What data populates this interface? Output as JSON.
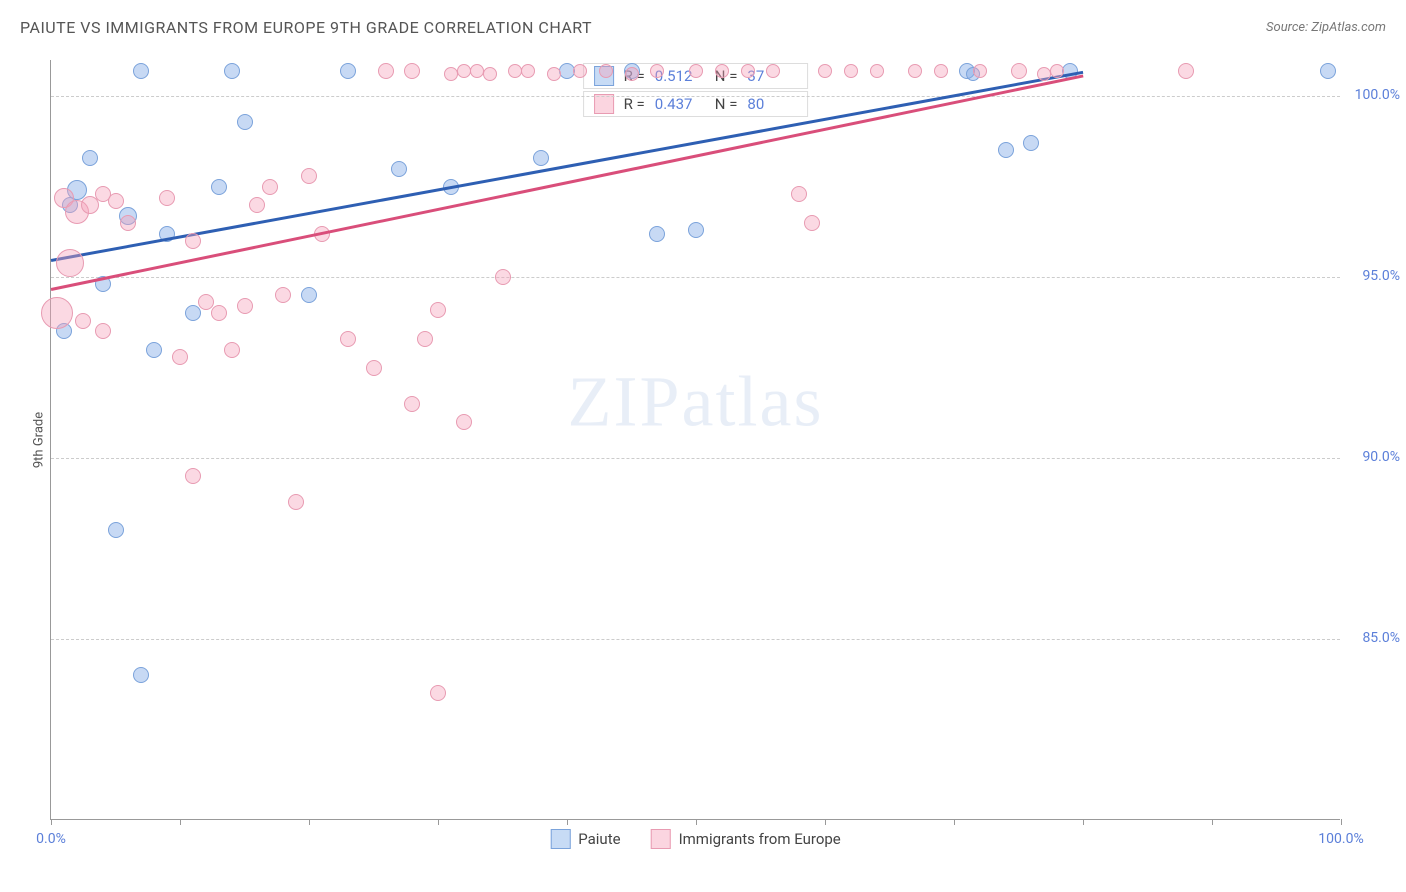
{
  "title": "PAIUTE VS IMMIGRANTS FROM EUROPE 9TH GRADE CORRELATION CHART",
  "source": "Source: ZipAtlas.com",
  "watermark_zip": "ZIP",
  "watermark_atlas": "atlas",
  "chart": {
    "type": "scatter",
    "ylabel": "9th Grade",
    "xlim": [
      0,
      100
    ],
    "ylim": [
      80,
      101
    ],
    "y_ticks": [
      85.0,
      90.0,
      95.0,
      100.0
    ],
    "y_tick_labels": [
      "85.0%",
      "90.0%",
      "95.0%",
      "100.0%"
    ],
    "x_tick_marks": [
      0,
      10,
      20,
      30,
      40,
      50,
      60,
      70,
      80,
      90,
      100
    ],
    "x_tick_labels": [
      {
        "pos": 0,
        "text": "0.0%"
      },
      {
        "pos": 100,
        "text": "100.0%"
      }
    ],
    "background_color": "#ffffff",
    "grid_color": "#cccccc",
    "axis_color": "#999999",
    "label_color": "#5b7fd9",
    "series": [
      {
        "name": "Paiute",
        "color_fill": "rgba(130,170,230,0.45)",
        "color_stroke": "#7ba3db",
        "swatch_fill": "#c7dbf5",
        "swatch_border": "#7ba3db",
        "trend_color": "#2e5fb3",
        "stats_r": "0.512",
        "stats_n": "37",
        "trend": {
          "x1": 0,
          "y1": 95.5,
          "x2": 80,
          "y2": 100.7
        },
        "points": [
          {
            "x": 7,
            "y": 100.7,
            "r": 8
          },
          {
            "x": 14,
            "y": 100.7,
            "r": 8
          },
          {
            "x": 3,
            "y": 98.3,
            "r": 8
          },
          {
            "x": 6,
            "y": 96.7,
            "r": 9
          },
          {
            "x": 2,
            "y": 97.4,
            "r": 10
          },
          {
            "x": 1.5,
            "y": 97.0,
            "r": 8
          },
          {
            "x": 9,
            "y": 96.2,
            "r": 8
          },
          {
            "x": 15,
            "y": 99.3,
            "r": 8
          },
          {
            "x": 13,
            "y": 97.5,
            "r": 8
          },
          {
            "x": 4,
            "y": 94.8,
            "r": 8
          },
          {
            "x": 1,
            "y": 93.5,
            "r": 8
          },
          {
            "x": 8,
            "y": 93.0,
            "r": 8
          },
          {
            "x": 11,
            "y": 94.0,
            "r": 8
          },
          {
            "x": 5,
            "y": 88.0,
            "r": 8
          },
          {
            "x": 7,
            "y": 84.0,
            "r": 8
          },
          {
            "x": 20,
            "y": 94.5,
            "r": 8
          },
          {
            "x": 23,
            "y": 100.7,
            "r": 8
          },
          {
            "x": 27,
            "y": 98.0,
            "r": 8
          },
          {
            "x": 31,
            "y": 97.5,
            "r": 8
          },
          {
            "x": 38,
            "y": 98.3,
            "r": 8
          },
          {
            "x": 40,
            "y": 100.7,
            "r": 8
          },
          {
            "x": 45,
            "y": 100.7,
            "r": 8
          },
          {
            "x": 47,
            "y": 96.2,
            "r": 8
          },
          {
            "x": 50,
            "y": 96.3,
            "r": 8
          },
          {
            "x": 71,
            "y": 100.7,
            "r": 8
          },
          {
            "x": 74,
            "y": 98.5,
            "r": 8
          },
          {
            "x": 76,
            "y": 98.7,
            "r": 8
          },
          {
            "x": 79,
            "y": 100.7,
            "r": 8
          },
          {
            "x": 99,
            "y": 100.7,
            "r": 8
          },
          {
            "x": 71.5,
            "y": 100.6,
            "r": 7
          }
        ]
      },
      {
        "name": "Immigrants from Europe",
        "color_fill": "rgba(245,160,185,0.4)",
        "color_stroke": "#e89bb2",
        "swatch_fill": "#fbd5e0",
        "swatch_border": "#e89bb2",
        "trend_color": "#d94e7a",
        "stats_r": "0.437",
        "stats_n": "80",
        "trend": {
          "x1": 0,
          "y1": 94.7,
          "x2": 80,
          "y2": 100.6
        },
        "points": [
          {
            "x": 1,
            "y": 97.2,
            "r": 10
          },
          {
            "x": 2,
            "y": 96.8,
            "r": 12
          },
          {
            "x": 1.5,
            "y": 95.4,
            "r": 14
          },
          {
            "x": 0.5,
            "y": 94.0,
            "r": 16
          },
          {
            "x": 3,
            "y": 97.0,
            "r": 9
          },
          {
            "x": 4,
            "y": 97.3,
            "r": 8
          },
          {
            "x": 5,
            "y": 97.1,
            "r": 8
          },
          {
            "x": 6,
            "y": 96.5,
            "r": 8
          },
          {
            "x": 2.5,
            "y": 93.8,
            "r": 8
          },
          {
            "x": 4,
            "y": 93.5,
            "r": 8
          },
          {
            "x": 9,
            "y": 97.2,
            "r": 8
          },
          {
            "x": 11,
            "y": 96.0,
            "r": 8
          },
          {
            "x": 12,
            "y": 94.3,
            "r": 8
          },
          {
            "x": 10,
            "y": 92.8,
            "r": 8
          },
          {
            "x": 13,
            "y": 94.0,
            "r": 8
          },
          {
            "x": 14,
            "y": 93.0,
            "r": 8
          },
          {
            "x": 15,
            "y": 94.2,
            "r": 8
          },
          {
            "x": 16,
            "y": 97.0,
            "r": 8
          },
          {
            "x": 17,
            "y": 97.5,
            "r": 8
          },
          {
            "x": 18,
            "y": 94.5,
            "r": 8
          },
          {
            "x": 11,
            "y": 89.5,
            "r": 8
          },
          {
            "x": 19,
            "y": 88.8,
            "r": 8
          },
          {
            "x": 20,
            "y": 97.8,
            "r": 8
          },
          {
            "x": 21,
            "y": 96.2,
            "r": 8
          },
          {
            "x": 23,
            "y": 93.3,
            "r": 8
          },
          {
            "x": 25,
            "y": 92.5,
            "r": 8
          },
          {
            "x": 26,
            "y": 100.7,
            "r": 8
          },
          {
            "x": 28,
            "y": 100.7,
            "r": 8
          },
          {
            "x": 29,
            "y": 93.3,
            "r": 8
          },
          {
            "x": 30,
            "y": 94.1,
            "r": 8
          },
          {
            "x": 31,
            "y": 100.6,
            "r": 7
          },
          {
            "x": 32,
            "y": 100.7,
            "r": 7
          },
          {
            "x": 33,
            "y": 100.7,
            "r": 7
          },
          {
            "x": 34,
            "y": 100.6,
            "r": 7
          },
          {
            "x": 28,
            "y": 91.5,
            "r": 8
          },
          {
            "x": 32,
            "y": 91.0,
            "r": 8
          },
          {
            "x": 30,
            "y": 83.5,
            "r": 8
          },
          {
            "x": 35,
            "y": 95.0,
            "r": 8
          },
          {
            "x": 36,
            "y": 100.7,
            "r": 7
          },
          {
            "x": 37,
            "y": 100.7,
            "r": 7
          },
          {
            "x": 39,
            "y": 100.6,
            "r": 7
          },
          {
            "x": 41,
            "y": 100.7,
            "r": 7
          },
          {
            "x": 43,
            "y": 100.7,
            "r": 7
          },
          {
            "x": 45,
            "y": 100.6,
            "r": 7
          },
          {
            "x": 47,
            "y": 100.7,
            "r": 7
          },
          {
            "x": 50,
            "y": 100.7,
            "r": 7
          },
          {
            "x": 52,
            "y": 100.7,
            "r": 7
          },
          {
            "x": 54,
            "y": 100.7,
            "r": 7
          },
          {
            "x": 56,
            "y": 100.7,
            "r": 7
          },
          {
            "x": 58,
            "y": 97.3,
            "r": 8
          },
          {
            "x": 59,
            "y": 96.5,
            "r": 8
          },
          {
            "x": 60,
            "y": 100.7,
            "r": 7
          },
          {
            "x": 62,
            "y": 100.7,
            "r": 7
          },
          {
            "x": 64,
            "y": 100.7,
            "r": 7
          },
          {
            "x": 67,
            "y": 100.7,
            "r": 7
          },
          {
            "x": 69,
            "y": 100.7,
            "r": 7
          },
          {
            "x": 72,
            "y": 100.7,
            "r": 7
          },
          {
            "x": 75,
            "y": 100.7,
            "r": 8
          },
          {
            "x": 77,
            "y": 100.6,
            "r": 7
          },
          {
            "x": 78,
            "y": 100.7,
            "r": 7
          },
          {
            "x": 88,
            "y": 100.7,
            "r": 8
          }
        ]
      }
    ]
  },
  "stats_label_r": "R =",
  "stats_label_n": "N =",
  "legend": {
    "series1": "Paiute",
    "series2": "Immigrants from Europe"
  }
}
